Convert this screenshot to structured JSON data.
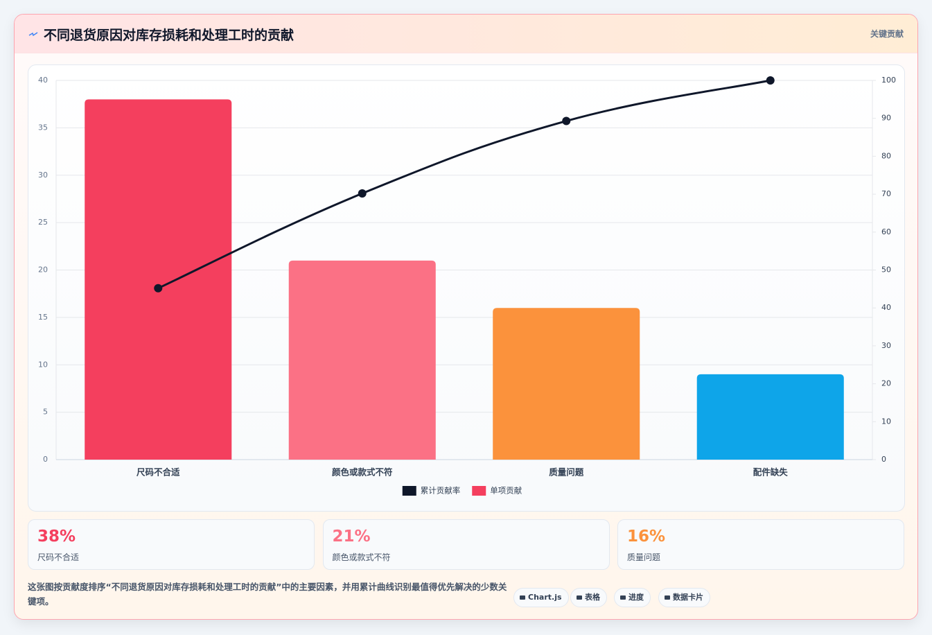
{
  "header": {
    "title": "不同退货原因对库存损耗和处理工时的贡献",
    "tag": "关键贡献"
  },
  "chart_data": {
    "type": "bar",
    "categories": [
      "尺码不合适",
      "颜色或款式不符",
      "质量问题",
      "配件缺失"
    ],
    "series": [
      {
        "name": "累计贡献率",
        "type": "line",
        "axis": "y2",
        "color": "#0f172a",
        "values": [
          45.2,
          70.2,
          89.3,
          100
        ]
      },
      {
        "name": "单项贡献",
        "type": "bar",
        "color": "#f43f5e",
        "colors": [
          "#f43f5e",
          "#fb7185",
          "#fb923c",
          "#0ea5e9"
        ],
        "values": [
          38,
          21,
          16,
          9
        ]
      }
    ],
    "ylim": [
      0,
      40
    ],
    "yticks": [
      0,
      5,
      10,
      15,
      20,
      25,
      30,
      35,
      40
    ],
    "y2lim": [
      0,
      100
    ],
    "y2ticks": [
      0,
      10,
      20,
      30,
      40,
      50,
      60,
      70,
      80,
      90,
      100
    ],
    "grid": true,
    "legend": "bottom"
  },
  "stats": [
    {
      "value": "38%",
      "label": "尺码不合适",
      "color": "#f43f5e"
    },
    {
      "value": "21%",
      "label": "颜色或款式不符",
      "color": "#fb7185"
    },
    {
      "value": "16%",
      "label": "质量问题",
      "color": "#fb923c"
    }
  ],
  "footer": {
    "note": "这张图按贡献度排序“不同退货原因对库存损耗和处理工时的贡献”中的主要因素，并用累计曲线识别最值得优先解决的少数关键项。",
    "buttons": [
      "Chart.js",
      "表格",
      "进度",
      "数据卡片"
    ]
  }
}
